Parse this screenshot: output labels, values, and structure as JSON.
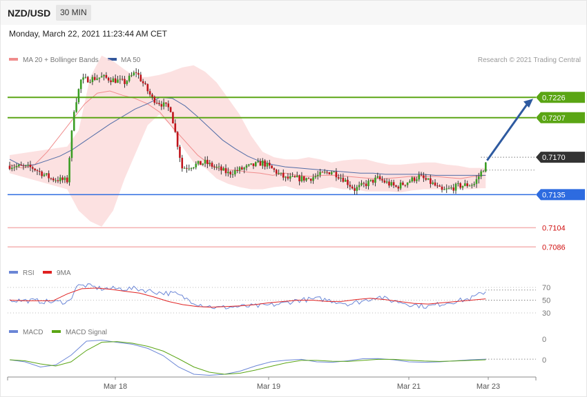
{
  "header": {
    "symbol": "NZD/USD",
    "timeframe": "30 MIN",
    "datetime": "Monday, March 22, 2021 11:23:44 AM CET"
  },
  "colors": {
    "bull": "#3a9d23",
    "bear": "#c0141b",
    "ma20": "#f08c8c",
    "ma50": "#33579c",
    "band_fill": "#fbdada",
    "resistance": "#5aa514",
    "support": "#2d6be0",
    "support_lower": "#f4b0b0",
    "current": "#333333",
    "rsi": "#6b86d6",
    "rsi_ma": "#e02020",
    "macd": "#6b86d6",
    "macd_signal": "#5aa514",
    "arrow": "#2e5aa0"
  },
  "legend_price": [
    {
      "name": "MA 20 + Bollinger Bands",
      "color": "#f08c8c"
    },
    {
      "name": "MA 50",
      "color": "#33579c"
    }
  ],
  "credit": "Research © 2021 Trading Central",
  "legend_rsi": [
    {
      "name": "RSI",
      "color": "#6b86d6"
    },
    {
      "name": "9MA",
      "color": "#e02020"
    }
  ],
  "legend_macd": [
    {
      "name": "MACD",
      "color": "#6b86d6"
    },
    {
      "name": "MACD Signal",
      "color": "#5aa514"
    }
  ],
  "chart_data": {
    "type": "candlestick",
    "price_range": [
      0.7072,
      0.7272
    ],
    "x_labels": [
      "Mar 18",
      "Mar 19",
      "Mar 21",
      "Mar 23"
    ],
    "levels": [
      {
        "value": "0.7226",
        "kind": "resistance"
      },
      {
        "value": "0.7207",
        "kind": "resistance"
      },
      {
        "value": "0.7170",
        "kind": "current"
      },
      {
        "value": "0.7135",
        "kind": "support"
      },
      {
        "value": "0.7104",
        "kind": "support_lower"
      },
      {
        "value": "0.7086",
        "kind": "support_lower"
      }
    ],
    "price_keypoints": [
      {
        "i": 0,
        "p": 0.7162
      },
      {
        "i": 10,
        "p": 0.716
      },
      {
        "i": 18,
        "p": 0.715
      },
      {
        "i": 25,
        "p": 0.7148
      },
      {
        "i": 28,
        "p": 0.7215
      },
      {
        "i": 31,
        "p": 0.7242
      },
      {
        "i": 40,
        "p": 0.7245
      },
      {
        "i": 50,
        "p": 0.724
      },
      {
        "i": 55,
        "p": 0.725
      },
      {
        "i": 62,
        "p": 0.7225
      },
      {
        "i": 70,
        "p": 0.7215
      },
      {
        "i": 75,
        "p": 0.716
      },
      {
        "i": 85,
        "p": 0.7165
      },
      {
        "i": 95,
        "p": 0.7155
      },
      {
        "i": 110,
        "p": 0.7165
      },
      {
        "i": 120,
        "p": 0.715
      },
      {
        "i": 130,
        "p": 0.715
      },
      {
        "i": 140,
        "p": 0.7157
      },
      {
        "i": 145,
        "p": 0.715
      },
      {
        "i": 150,
        "p": 0.714
      },
      {
        "i": 160,
        "p": 0.715
      },
      {
        "i": 168,
        "p": 0.7142
      },
      {
        "i": 178,
        "p": 0.7152
      },
      {
        "i": 184,
        "p": 0.7145
      },
      {
        "i": 188,
        "p": 0.7138
      },
      {
        "i": 195,
        "p": 0.7143
      },
      {
        "i": 202,
        "p": 0.7145
      },
      {
        "i": 207,
        "p": 0.7163
      }
    ],
    "bands": {
      "x_idx": [
        0,
        25,
        30,
        35,
        40,
        45,
        50,
        55,
        60,
        65,
        70,
        75,
        80,
        85,
        90,
        95,
        100,
        105,
        110,
        115,
        120,
        125,
        130,
        135,
        140,
        145,
        150,
        155,
        160,
        165,
        170,
        175,
        180,
        185,
        190,
        195,
        200,
        205,
        207
      ],
      "upper": [
        0.7172,
        0.718,
        0.7195,
        0.7245,
        0.7265,
        0.726,
        0.7252,
        0.7245,
        0.7245,
        0.7247,
        0.725,
        0.7254,
        0.7256,
        0.725,
        0.724,
        0.7225,
        0.721,
        0.719,
        0.7175,
        0.717,
        0.7168,
        0.7168,
        0.717,
        0.7168,
        0.7165,
        0.7167,
        0.7168,
        0.7168,
        0.7165,
        0.7163,
        0.7163,
        0.7164,
        0.7165,
        0.7165,
        0.7163,
        0.7162,
        0.716,
        0.716,
        0.716
      ],
      "lower": [
        0.7155,
        0.714,
        0.712,
        0.711,
        0.7105,
        0.712,
        0.715,
        0.7175,
        0.72,
        0.721,
        0.72,
        0.718,
        0.7165,
        0.716,
        0.715,
        0.7145,
        0.7142,
        0.714,
        0.714,
        0.7142,
        0.7143,
        0.714,
        0.714,
        0.714,
        0.7142,
        0.714,
        0.714,
        0.7138,
        0.7138,
        0.7138,
        0.7137,
        0.7139,
        0.714,
        0.714,
        0.714,
        0.714,
        0.714,
        0.7141,
        0.7141
      ]
    },
    "ma20": [
      0.7163,
      0.716,
      0.7163,
      0.7175,
      0.719,
      0.7205,
      0.722,
      0.723,
      0.7232,
      0.7228,
      0.7225,
      0.722,
      0.7212,
      0.7198,
      0.7185,
      0.7172,
      0.7163,
      0.7158,
      0.7158,
      0.7156,
      0.7155,
      0.7153,
      0.7155,
      0.7153,
      0.7152,
      0.7153,
      0.7153,
      0.7152,
      0.7151,
      0.715,
      0.715,
      0.7151,
      0.7152,
      0.7152,
      0.7152,
      0.7151,
      0.715,
      0.7152,
      0.7153
    ],
    "ma50": [
      0.7168,
      0.7162,
      0.7163,
      0.7167,
      0.7171,
      0.7177,
      0.7185,
      0.7193,
      0.7201,
      0.7208,
      0.7215,
      0.722,
      0.7226,
      0.7225,
      0.7218,
      0.7208,
      0.7197,
      0.7186,
      0.7178,
      0.7171,
      0.7166,
      0.7163,
      0.7161,
      0.716,
      0.7159,
      0.7158,
      0.7157,
      0.7156,
      0.7155,
      0.7155,
      0.7154,
      0.7154,
      0.7154,
      0.7154,
      0.7153,
      0.7153,
      0.7153,
      0.7153,
      0.7153
    ],
    "rsi_levels": [
      "70",
      "50",
      "30"
    ],
    "rsi_range": [
      20,
      80
    ],
    "rsi_keypoints": [
      {
        "i": 0,
        "v": 50
      },
      {
        "i": 10,
        "v": 49
      },
      {
        "i": 20,
        "v": 47
      },
      {
        "i": 26,
        "v": 48
      },
      {
        "i": 29,
        "v": 72
      },
      {
        "i": 33,
        "v": 73
      },
      {
        "i": 40,
        "v": 68
      },
      {
        "i": 55,
        "v": 68
      },
      {
        "i": 65,
        "v": 62
      },
      {
        "i": 72,
        "v": 60
      },
      {
        "i": 82,
        "v": 44
      },
      {
        "i": 90,
        "v": 38
      },
      {
        "i": 100,
        "v": 40
      },
      {
        "i": 110,
        "v": 41
      },
      {
        "i": 118,
        "v": 44
      },
      {
        "i": 125,
        "v": 50
      },
      {
        "i": 135,
        "v": 52
      },
      {
        "i": 142,
        "v": 48
      },
      {
        "i": 148,
        "v": 44
      },
      {
        "i": 155,
        "v": 50
      },
      {
        "i": 160,
        "v": 56
      },
      {
        "i": 165,
        "v": 50
      },
      {
        "i": 170,
        "v": 47
      },
      {
        "i": 175,
        "v": 43
      },
      {
        "i": 182,
        "v": 40
      },
      {
        "i": 190,
        "v": 46
      },
      {
        "i": 200,
        "v": 52
      },
      {
        "i": 205,
        "v": 60
      },
      {
        "i": 207,
        "v": 64
      }
    ],
    "rsi_ma": [
      50,
      49,
      49,
      49,
      60,
      68,
      69,
      67,
      64,
      61,
      55,
      48,
      43,
      40,
      39,
      40,
      41,
      43,
      46,
      48,
      50,
      50,
      48,
      48,
      51,
      53,
      51,
      48,
      45,
      44,
      46,
      48,
      50,
      52
    ],
    "macd_levels": [
      "0",
      "0"
    ],
    "macd": [
      0.0,
      -0.1,
      -0.35,
      -0.25,
      0.22,
      0.9,
      0.95,
      0.84,
      0.75,
      0.55,
      0.2,
      -0.35,
      -0.7,
      -0.75,
      -0.7,
      -0.55,
      -0.3,
      -0.1,
      -0.02,
      0.02,
      -0.1,
      -0.12,
      -0.05,
      0.05,
      0.06,
      0.0,
      -0.1,
      -0.12,
      -0.1,
      -0.05,
      0.0,
      0.03
    ],
    "macd_signal": [
      0.0,
      -0.05,
      -0.2,
      -0.3,
      -0.1,
      0.45,
      0.85,
      0.88,
      0.8,
      0.65,
      0.42,
      0.05,
      -0.35,
      -0.6,
      -0.7,
      -0.65,
      -0.5,
      -0.32,
      -0.15,
      -0.03,
      -0.03,
      -0.07,
      -0.08,
      -0.03,
      0.02,
      0.02,
      -0.02,
      -0.06,
      -0.08,
      -0.06,
      -0.03,
      0.0
    ]
  }
}
